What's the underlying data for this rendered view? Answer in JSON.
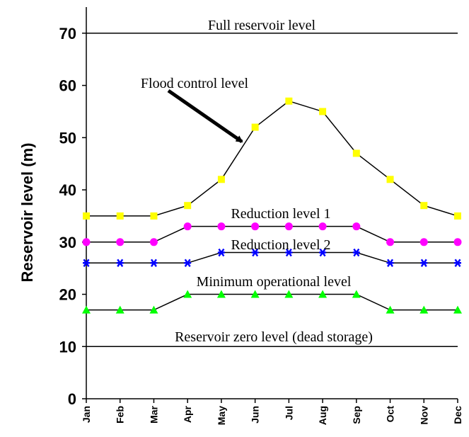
{
  "chart_data": {
    "type": "line",
    "ylabel": "Reservoir level (m)",
    "categories": [
      "Jan",
      "Feb",
      "Mar",
      "Apr",
      "May",
      "Jun",
      "Jul",
      "Aug",
      "Sep",
      "Oct",
      "Nov",
      "Dec"
    ],
    "ylim": [
      0,
      75
    ],
    "yticks": [
      0,
      10,
      20,
      30,
      40,
      50,
      60,
      70
    ],
    "grid": false,
    "reference_lines": [
      {
        "label": "Full reservoir level",
        "value": 70
      },
      {
        "label": "Reservoir zero level (dead storage)",
        "value": 10
      }
    ],
    "series": [
      {
        "name": "Flood control level",
        "color": "#ffff00",
        "marker": "square",
        "values": [
          35,
          35,
          35,
          37,
          42,
          52,
          57,
          55,
          47,
          42,
          37,
          35
        ]
      },
      {
        "name": "Reduction level 1",
        "color": "#ff00ff",
        "marker": "circle",
        "values": [
          30,
          30,
          30,
          33,
          33,
          33,
          33,
          33,
          33,
          30,
          30,
          30
        ]
      },
      {
        "name": "Reduction level 2",
        "color": "#0000ff",
        "marker": "asterisk",
        "values": [
          26,
          26,
          26,
          26,
          28,
          28,
          28,
          28,
          28,
          26,
          26,
          26
        ]
      },
      {
        "name": "Minimum operational level",
        "color": "#00ff00",
        "marker": "triangle",
        "values": [
          17,
          17,
          17,
          20,
          20,
          20,
          20,
          20,
          20,
          17,
          17,
          17
        ]
      }
    ]
  }
}
